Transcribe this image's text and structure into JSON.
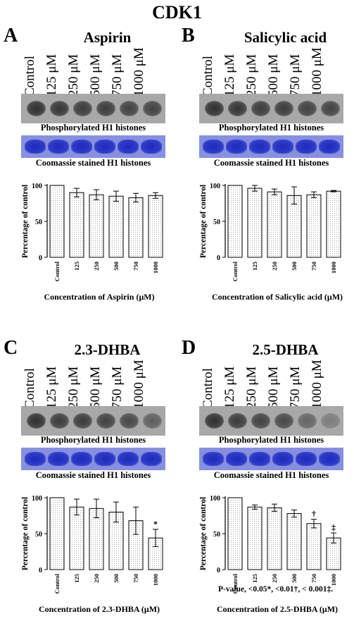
{
  "main_title": "CDK1",
  "lanes": [
    "Control",
    "125 μM",
    "250 μM",
    "500 μM",
    "750 μM",
    "1000 μM"
  ],
  "blot_caption": "Phosphorylated H1 histones",
  "gel_caption": "Coomassie stained H1 histones",
  "colors": {
    "bar_fill": "#ffffff",
    "bar_stroke": "#000000",
    "gel": "#8790e0",
    "blot": "#a8a8a8"
  },
  "panels": [
    {
      "letter": "A",
      "title": "Aspirin",
      "band_darkness": [
        1.0,
        0.95,
        0.9,
        0.9,
        0.85,
        0.85
      ]
    },
    {
      "letter": "B",
      "title": "Salicylic acid",
      "band_darkness": [
        1.0,
        0.95,
        0.9,
        0.9,
        0.85,
        0.85
      ]
    },
    {
      "letter": "C",
      "title": "2.3-DHBA",
      "band_darkness": [
        1.0,
        0.9,
        0.9,
        0.85,
        0.8,
        0.6
      ]
    },
    {
      "letter": "D",
      "title": "2.5-DHBA",
      "band_darkness": [
        1.0,
        0.9,
        0.85,
        0.8,
        0.55,
        0.35
      ]
    }
  ],
  "chart_data": [
    {
      "type": "bar",
      "categories": [
        "Control",
        "125",
        "250",
        "500",
        "750",
        "1000"
      ],
      "values": [
        100,
        90,
        87,
        85,
        83,
        86
      ],
      "errors": [
        0,
        6,
        7,
        7,
        6,
        4
      ],
      "markers": [
        "",
        "",
        "",
        "",
        "",
        ""
      ],
      "xlabel": "Concentration of Aspirin (μM)",
      "ylabel": "Percentage of control",
      "ylim": [
        0,
        100
      ],
      "yticks": [
        0,
        50,
        100
      ]
    },
    {
      "type": "bar",
      "categories": [
        "Control",
        "125",
        "250",
        "500",
        "750",
        "1000"
      ],
      "values": [
        100,
        96,
        91,
        86,
        87,
        92
      ],
      "errors": [
        0,
        4,
        4,
        12,
        4,
        1
      ],
      "markers": [
        "",
        "",
        "",
        "",
        "",
        ""
      ],
      "xlabel": "Concentration of Salicylic acid (μM)",
      "ylabel": "Percentage of control",
      "ylim": [
        0,
        100
      ],
      "yticks": [
        0,
        50,
        100
      ]
    },
    {
      "type": "bar",
      "categories": [
        "Control",
        "125",
        "250",
        "500",
        "750",
        "1000"
      ],
      "values": [
        100,
        87,
        85,
        80,
        68,
        44
      ],
      "errors": [
        0,
        11,
        13,
        14,
        19,
        12
      ],
      "markers": [
        "",
        "",
        "",
        "",
        "",
        "*"
      ],
      "xlabel": "Concentration of 2.3-DHBA (μM)",
      "ylabel": "Percentage of control",
      "ylim": [
        0,
        100
      ],
      "yticks": [
        0,
        50,
        100
      ]
    },
    {
      "type": "bar",
      "categories": [
        "Control",
        "125",
        "250",
        "500",
        "750",
        "1000"
      ],
      "values": [
        100,
        87,
        86,
        78,
        64,
        44
      ],
      "errors": [
        0,
        3,
        5,
        5,
        6,
        7
      ],
      "markers": [
        "",
        "",
        "",
        "",
        "†",
        "‡"
      ],
      "xlabel": "Concentration of 2.5-DHBA (μM)",
      "ylabel": "Percentage of control",
      "ylim": [
        0,
        100
      ],
      "yticks": [
        0,
        50,
        100
      ]
    }
  ],
  "footnote": "P-value, <0.05*, <0.01†, < 0.001‡."
}
